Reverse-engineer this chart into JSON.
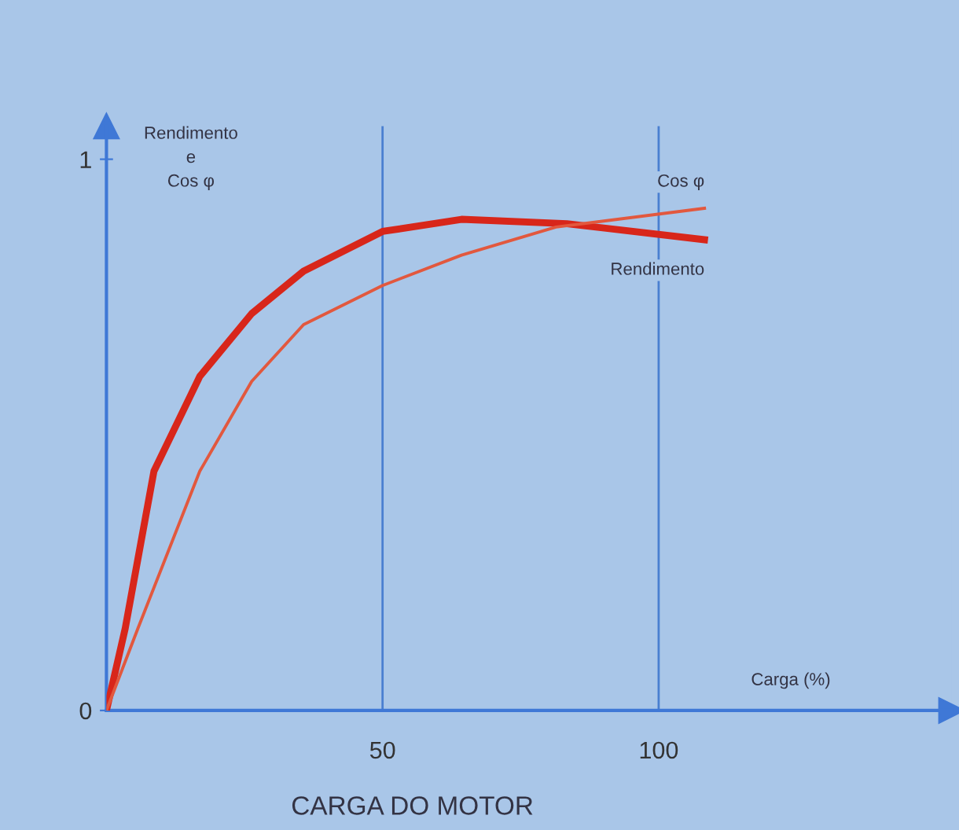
{
  "chart_data": {
    "type": "line",
    "xlabel": "Carga (%)",
    "ylabel": "Rendimento\ne\nCos φ",
    "annotations": [
      "CARGA DO MOTOR"
    ],
    "xlim": [
      0,
      153
    ],
    "ylim": [
      0,
      1.06
    ],
    "xticks": [
      50,
      100
    ],
    "yticks": [
      0,
      1
    ],
    "grid": false,
    "legend": false,
    "marker": "none",
    "line_style": "solid",
    "ref_lines": [
      {
        "axis": "x",
        "value": 50,
        "color": "#4a7fd0"
      },
      {
        "axis": "x",
        "value": 100,
        "color": "#4a7fd0"
      }
    ],
    "series": [
      {
        "name": "Rendimento",
        "color": "#d8261a",
        "x": [
          0,
          3.4,
          8.6,
          16.9,
          26.3,
          35.7,
          50,
          64.3,
          83.4,
          108.3
        ],
        "values": [
          0,
          0.149,
          0.434,
          0.606,
          0.72,
          0.797,
          0.869,
          0.891,
          0.883,
          0.854
        ]
      },
      {
        "name": "Cos φ",
        "color": "#e2583e",
        "x": [
          0,
          5.7,
          16.9,
          26.3,
          35.7,
          50,
          64.3,
          81.4,
          108.3
        ],
        "values": [
          0,
          0.149,
          0.434,
          0.597,
          0.7,
          0.771,
          0.826,
          0.877,
          0.911
        ]
      }
    ]
  }
}
